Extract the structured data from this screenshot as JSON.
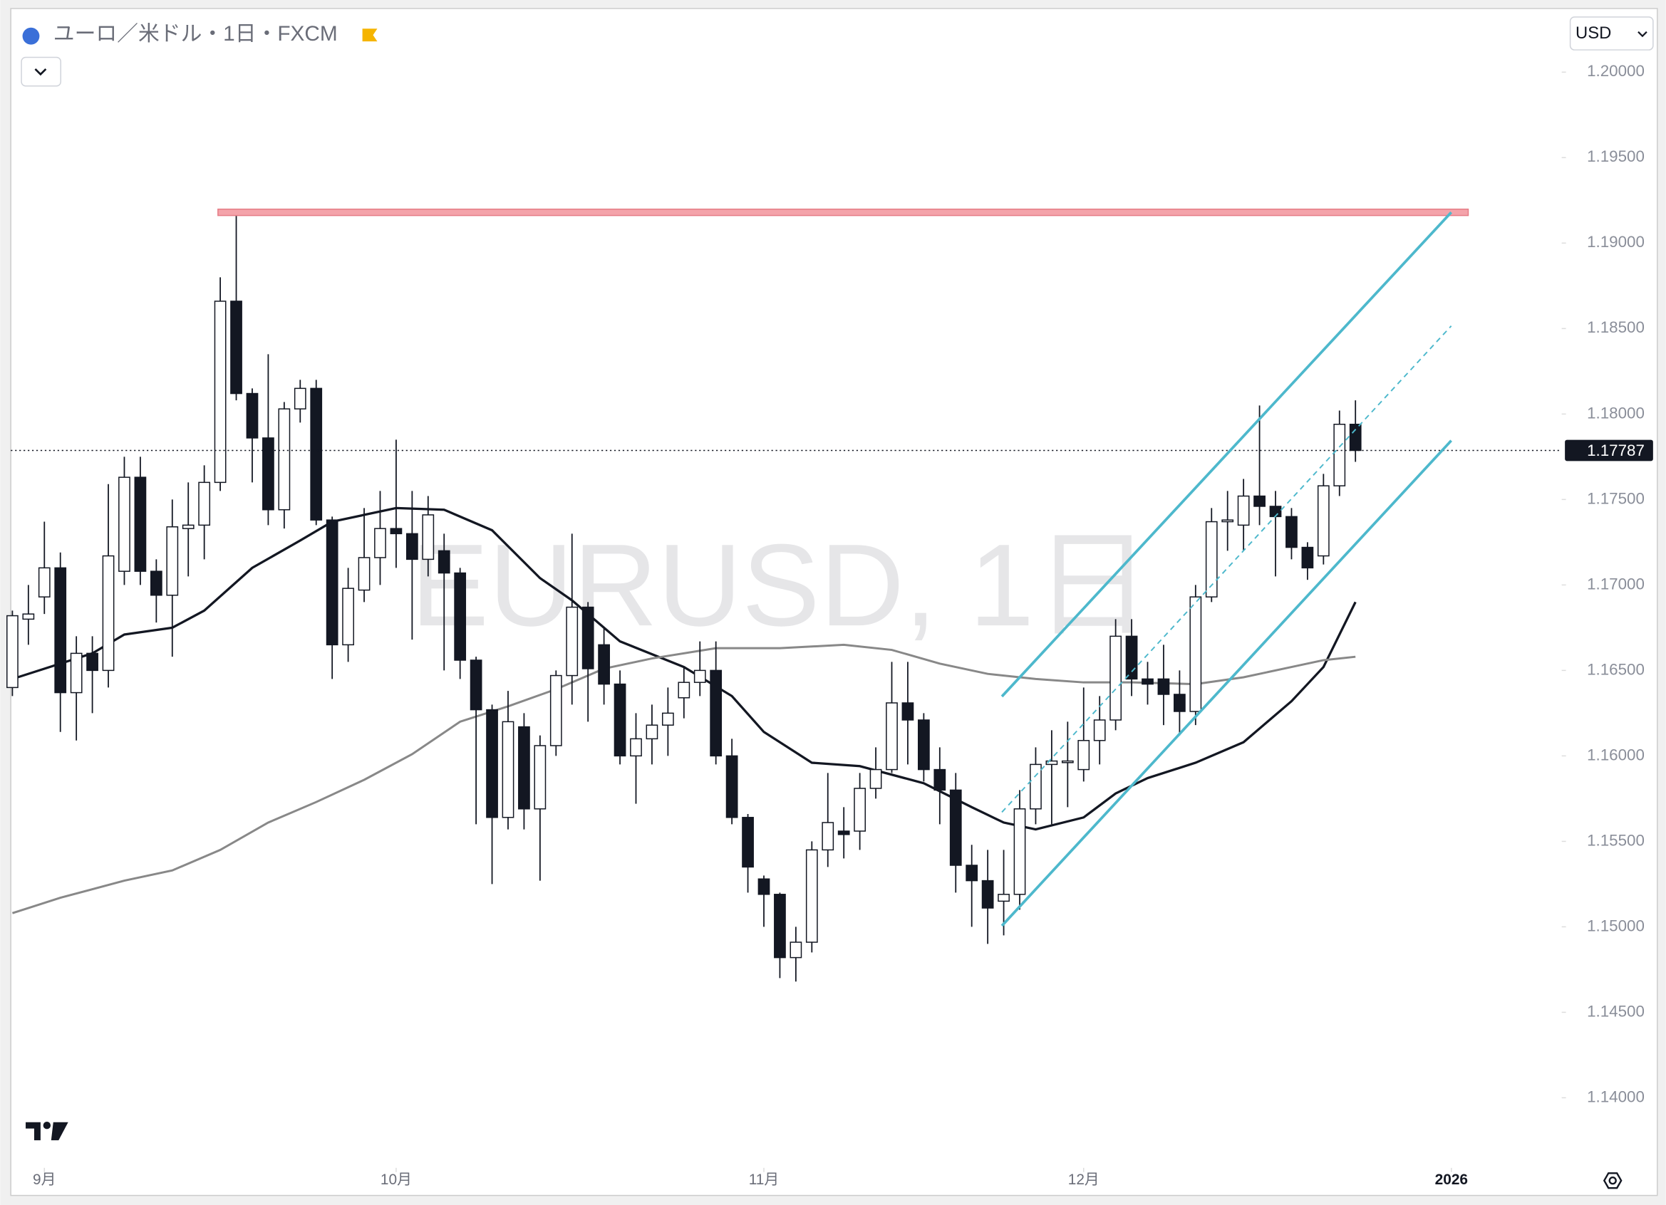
{
  "chart_data": {
    "type": "candlestick",
    "title": "ユーロ／米ドル・1日・FXCM",
    "watermark": "EURUSD, 1日",
    "currency": "USD",
    "open": [
      1.164,
      1.168,
      1.1693,
      1.171,
      1.1637,
      1.166,
      1.165,
      1.1708,
      1.1763,
      1.1708,
      1.1694,
      1.1733,
      1.1735,
      1.176,
      1.1866,
      1.1812,
      1.1786,
      1.1744,
      1.1803,
      1.1815,
      1.1738,
      1.1665,
      1.1697,
      1.1716,
      1.1733,
      1.173,
      1.1715,
      1.172,
      1.1707,
      1.1656,
      1.1627,
      1.1564,
      1.1617,
      1.1569,
      1.1606,
      1.1647,
      1.1687,
      1.1665,
      1.1642,
      1.16,
      1.161,
      1.1618,
      1.1634,
      1.1643,
      1.165,
      1.16,
      1.1564,
      1.1528,
      1.1519,
      1.1482,
      1.1491,
      1.1545,
      1.1556,
      1.1556,
      1.1581,
      1.1592,
      1.1631,
      1.1621,
      1.1592,
      1.158,
      1.1536,
      1.1527,
      1.1515,
      1.1519,
      1.1569,
      1.1595,
      1.1597,
      1.1592,
      1.1609,
      1.1621,
      1.167,
      1.1645,
      1.1645,
      1.1636,
      1.1626,
      1.1693,
      1.1737,
      1.1735,
      1.1752,
      1.1746,
      1.174,
      1.1722,
      1.1717,
      1.1758,
      1.1794
    ],
    "high": [
      1.1685,
      1.17,
      1.1737,
      1.1719,
      1.167,
      1.167,
      1.1759,
      1.1775,
      1.1775,
      1.1715,
      1.175,
      1.176,
      1.177,
      1.188,
      1.1917,
      1.1815,
      1.1835,
      1.1807,
      1.182,
      1.182,
      1.174,
      1.171,
      1.1745,
      1.1755,
      1.1785,
      1.1755,
      1.1752,
      1.173,
      1.171,
      1.1658,
      1.163,
      1.1638,
      1.1625,
      1.1612,
      1.165,
      1.173,
      1.169,
      1.1675,
      1.165,
      1.1625,
      1.163,
      1.164,
      1.1652,
      1.1667,
      1.1667,
      1.161,
      1.1566,
      1.153,
      1.152,
      1.15,
      1.155,
      1.159,
      1.157,
      1.159,
      1.1605,
      1.1655,
      1.1655,
      1.1625,
      1.1605,
      1.159,
      1.1548,
      1.1545,
      1.1545,
      1.158,
      1.1605,
      1.1615,
      1.162,
      1.164,
      1.1635,
      1.168,
      1.168,
      1.1655,
      1.1665,
      1.165,
      1.17,
      1.1745,
      1.1755,
      1.1762,
      1.1805,
      1.1755,
      1.1745,
      1.1725,
      1.1765,
      1.1802,
      1.1808
    ],
    "low": [
      1.1635,
      1.1665,
      1.1683,
      1.1614,
      1.1609,
      1.1625,
      1.164,
      1.17,
      1.17,
      1.1678,
      1.1658,
      1.1705,
      1.1715,
      1.1755,
      1.1808,
      1.176,
      1.1735,
      1.1733,
      1.1795,
      1.1735,
      1.1645,
      1.1655,
      1.169,
      1.17,
      1.171,
      1.1668,
      1.1705,
      1.165,
      1.1645,
      1.156,
      1.1525,
      1.1557,
      1.1557,
      1.1527,
      1.16,
      1.163,
      1.162,
      1.163,
      1.1595,
      1.1572,
      1.1595,
      1.16,
      1.1622,
      1.1635,
      1.1595,
      1.156,
      1.152,
      1.15,
      1.147,
      1.1468,
      1.1485,
      1.1535,
      1.154,
      1.1545,
      1.1575,
      1.159,
      1.1595,
      1.1585,
      1.156,
      1.152,
      1.15,
      1.149,
      1.1495,
      1.151,
      1.156,
      1.156,
      1.157,
      1.1585,
      1.1595,
      1.1615,
      1.1635,
      1.163,
      1.1618,
      1.1612,
      1.1618,
      1.169,
      1.172,
      1.172,
      1.1735,
      1.1705,
      1.1715,
      1.1703,
      1.1712,
      1.1752,
      1.1772
    ],
    "close": [
      1.1682,
      1.1683,
      1.171,
      1.1637,
      1.166,
      1.165,
      1.1717,
      1.1763,
      1.1708,
      1.1694,
      1.1734,
      1.1735,
      1.176,
      1.1866,
      1.1812,
      1.1786,
      1.1744,
      1.1803,
      1.1815,
      1.1738,
      1.1665,
      1.1698,
      1.1716,
      1.1733,
      1.173,
      1.1715,
      1.1741,
      1.1707,
      1.1656,
      1.1627,
      1.1564,
      1.162,
      1.1569,
      1.1606,
      1.1647,
      1.1687,
      1.1651,
      1.1642,
      1.16,
      1.161,
      1.1618,
      1.1625,
      1.1643,
      1.165,
      1.16,
      1.1564,
      1.1535,
      1.1519,
      1.1482,
      1.1491,
      1.1545,
      1.1561,
      1.1554,
      1.1581,
      1.1592,
      1.1631,
      1.1621,
      1.1592,
      1.158,
      1.1536,
      1.1527,
      1.1511,
      1.1519,
      1.1569,
      1.1595,
      1.1597,
      1.1597,
      1.1609,
      1.1621,
      1.167,
      1.1645,
      1.1642,
      1.1636,
      1.1626,
      1.1693,
      1.1737,
      1.1738,
      1.1752,
      1.1746,
      1.174,
      1.1722,
      1.171,
      1.1758,
      1.1794,
      1.17787
    ],
    "up_color": "#ffffff",
    "down_color": "#131722",
    "overlays": [
      {
        "color": "#131722",
        "x": [
          0,
          5,
          7,
          10,
          12,
          15,
          18,
          20,
          24,
          27,
          30,
          33,
          35,
          38,
          42,
          45,
          47,
          50,
          53,
          57,
          60,
          62,
          64,
          67,
          69,
          71,
          74,
          77,
          80,
          82,
          84
        ],
        "values": [
          1.1645,
          1.166,
          1.1671,
          1.1675,
          1.1685,
          1.171,
          1.1726,
          1.1737,
          1.1745,
          1.1744,
          1.1732,
          1.1704,
          1.1691,
          1.1667,
          1.1652,
          1.1635,
          1.1614,
          1.1596,
          1.1594,
          1.1584,
          1.157,
          1.1561,
          1.1557,
          1.1564,
          1.1578,
          1.1587,
          1.1596,
          1.1608,
          1.1632,
          1.1652,
          1.169
        ]
      },
      {
        "color": "#888888",
        "x": [
          0,
          3,
          7,
          10,
          13,
          16,
          19,
          22,
          25,
          28,
          31,
          34,
          37,
          40,
          44,
          48,
          52,
          55,
          58,
          61,
          64,
          67,
          70,
          74,
          77,
          80,
          82,
          84
        ],
        "values": [
          1.1508,
          1.1517,
          1.1527,
          1.1533,
          1.1545,
          1.1561,
          1.1573,
          1.1586,
          1.1601,
          1.162,
          1.1629,
          1.1639,
          1.1651,
          1.1657,
          1.1663,
          1.1663,
          1.1665,
          1.1662,
          1.1654,
          1.1648,
          1.1645,
          1.1643,
          1.1643,
          1.1642,
          1.1646,
          1.1652,
          1.1656,
          1.1658
        ]
      }
    ],
    "xlim": [
      -0.1,
      96.9
    ],
    "xticks": [
      {
        "value": 2,
        "label": "9月"
      },
      {
        "value": 24,
        "label": "10月"
      },
      {
        "value": 47,
        "label": "11月"
      },
      {
        "value": 67,
        "label": "12月"
      },
      {
        "value": 90,
        "label": "2026"
      }
    ],
    "ylim": [
      1.1359,
      1.2036
    ],
    "yticks": [
      {
        "value": 1.14,
        "label": "1.14000"
      },
      {
        "value": 1.145,
        "label": "1.14500"
      },
      {
        "value": 1.15,
        "label": "1.15000"
      },
      {
        "value": 1.155,
        "label": "1.15500"
      },
      {
        "value": 1.16,
        "label": "1.16000"
      },
      {
        "value": 1.165,
        "label": "1.16500"
      },
      {
        "value": 1.17,
        "label": "1.17000"
      },
      {
        "value": 1.175,
        "label": "1.17500"
      },
      {
        "value": 1.18,
        "label": "1.18000"
      },
      {
        "value": 1.185,
        "label": "1.18500"
      },
      {
        "value": 1.19,
        "label": "1.19000"
      },
      {
        "value": 1.195,
        "label": "1.19500"
      },
      {
        "value": 1.2,
        "label": "1.20000"
      }
    ],
    "last_price": 1.17787
  }
}
